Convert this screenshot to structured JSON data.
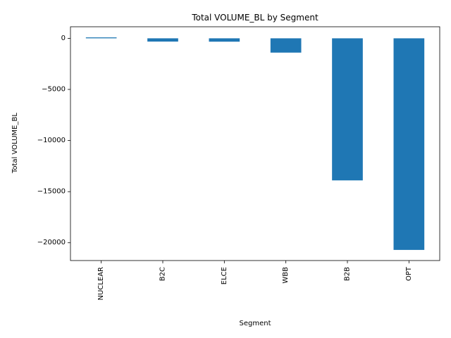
{
  "chart_data": {
    "type": "bar",
    "title": "Total VOLUME_BL by Segment",
    "xlabel": "Segment",
    "ylabel": "Total VOLUME_BL",
    "categories": [
      "NUCLEAR",
      "B2C",
      "ELCE",
      "WBB",
      "B2B",
      "OPT"
    ],
    "values": [
      90,
      -320,
      -330,
      -1400,
      -13900,
      -20700
    ],
    "ylim": [
      -21740,
      1130
    ],
    "yticks": [
      0,
      -5000,
      -10000,
      -15000,
      -20000
    ],
    "ytick_labels": [
      "0",
      "−5000",
      "−10000",
      "−15000",
      "−20000"
    ],
    "bar_color": "#1f77b4",
    "grid": false,
    "legend": "none"
  }
}
